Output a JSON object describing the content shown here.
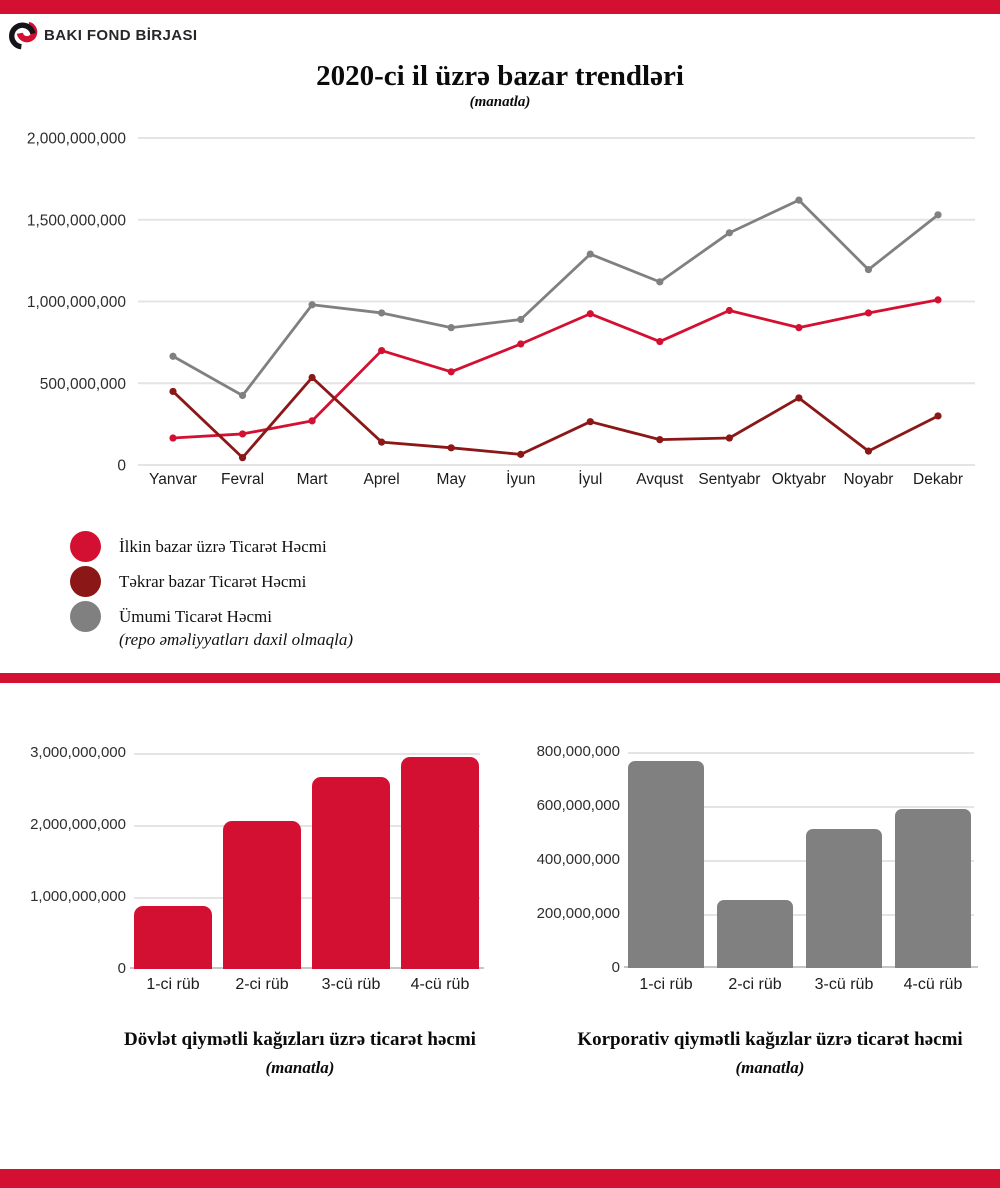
{
  "brand": {
    "name": "BAKI FOND BİRJASI",
    "red": "#D41032",
    "dark_red": "#8B1717",
    "gray": "#808080"
  },
  "header": {
    "title": "2020-ci il üzrə bazar trendləri",
    "subtitle": "(manatla)"
  },
  "legend": {
    "items": [
      {
        "label": "İlkin bazar üzrə Ticarət Həcmi",
        "sublabel": "",
        "color": "#D41032"
      },
      {
        "label": "Təkrar bazar Ticarət Həcmi",
        "sublabel": "",
        "color": "#8B1717"
      },
      {
        "label": "Ümumi Ticarət Həcmi",
        "sublabel": "(repo əməliyyatları daxil olmaqla)",
        "color": "#808080"
      }
    ]
  },
  "chart_data": [
    {
      "id": "market-trends-line",
      "type": "line",
      "title": "2020-ci il üzrə bazar trendləri",
      "subtitle": "(manatla)",
      "categories": [
        "Yanvar",
        "Fevral",
        "Mart",
        "Aprel",
        "May",
        "İyun",
        "İyul",
        "Avqust",
        "Sentyabr",
        "Oktyabr",
        "Noyabr",
        "Dekabr"
      ],
      "series": [
        {
          "name": "İlkin bazar üzrə Ticarət Həcmi",
          "color": "#D41032",
          "values": [
            165000000,
            190000000,
            270000000,
            700000000,
            570000000,
            740000000,
            925000000,
            755000000,
            945000000,
            840000000,
            930000000,
            1010000000
          ]
        },
        {
          "name": "Təkrar bazar Ticarət Həcmi",
          "color": "#8B1717",
          "values": [
            450000000,
            45000000,
            535000000,
            140000000,
            105000000,
            65000000,
            265000000,
            155000000,
            165000000,
            410000000,
            85000000,
            300000000
          ]
        },
        {
          "name": "Ümumi Ticarət Həcmi (repo əməliyyatları daxil olmaqla)",
          "color": "#808080",
          "values": [
            665000000,
            425000000,
            980000000,
            930000000,
            840000000,
            890000000,
            1290000000,
            1120000000,
            1420000000,
            1620000000,
            1195000000,
            1530000000
          ]
        }
      ],
      "ylim": [
        0,
        2000000000
      ],
      "yticks": [
        "2,000,000,000",
        "1,500,000,000",
        "1,000,000,000",
        "500,000,000",
        "0"
      ],
      "grid": true,
      "legend_position": "bottom-left"
    },
    {
      "id": "government-securities-bar",
      "type": "bar",
      "title": "Dövlət qiymətli kağızları üzrə ticarət həcmi",
      "subtitle": "(manatla)",
      "categories": [
        "1-ci rüb",
        "2-ci rüb",
        "3-cü rüb",
        "4-cü rüb"
      ],
      "values": [
        870000000,
        2060000000,
        2670000000,
        2950000000
      ],
      "bar_color": "#D41032",
      "ylim": [
        0,
        3000000000
      ],
      "yticks": [
        "3,000,000,000",
        "2,000,000,000",
        "1,000,000,000",
        "0"
      ],
      "grid": true
    },
    {
      "id": "corporate-securities-bar",
      "type": "bar",
      "title": "Korporativ qiymətli kağızlar üzrə ticarət həcmi",
      "subtitle": "(manatla)",
      "categories": [
        "1-ci rüb",
        "2-ci rüb",
        "3-cü rüb",
        "4-cü rüb"
      ],
      "values": [
        765000000,
        250000000,
        515000000,
        590000000
      ],
      "bar_color": "#808080",
      "ylim": [
        0,
        800000000
      ],
      "yticks": [
        "800,000,000",
        "600,000,000",
        "400,000,000",
        "200,000,000",
        "0"
      ],
      "grid": true
    }
  ]
}
